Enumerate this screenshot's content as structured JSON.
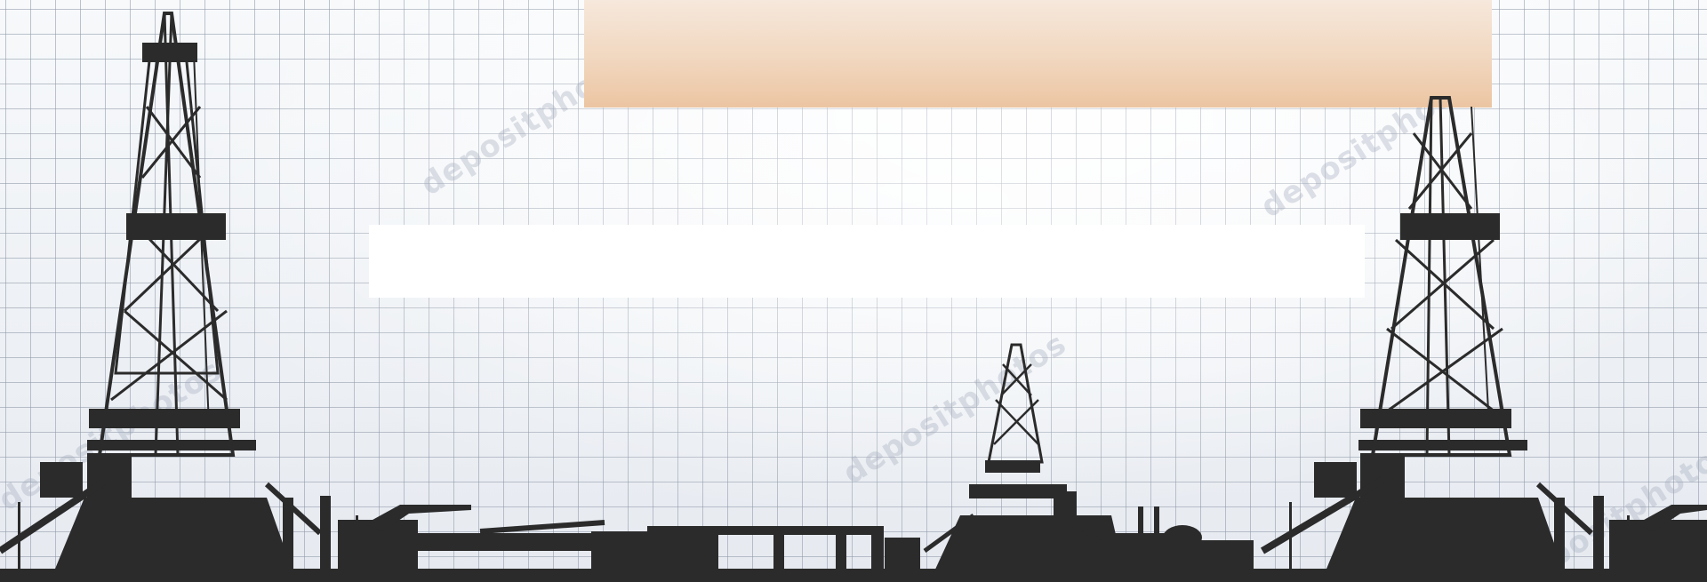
{
  "scene": {
    "colors": {
      "silhouette": "#2b2b2b",
      "grid": "#8c96a5",
      "background": "#eef1f5",
      "banner_top": "#f6e8dc",
      "banner_bottom": "#ecc5a2",
      "mid_bar": "#ffffff"
    },
    "watermark_text": "depositphotos",
    "elements": [
      "tall-oil-rig-left",
      "small-oil-rig-center",
      "tall-oil-rig-right",
      "industrial-ground-equipment"
    ]
  }
}
